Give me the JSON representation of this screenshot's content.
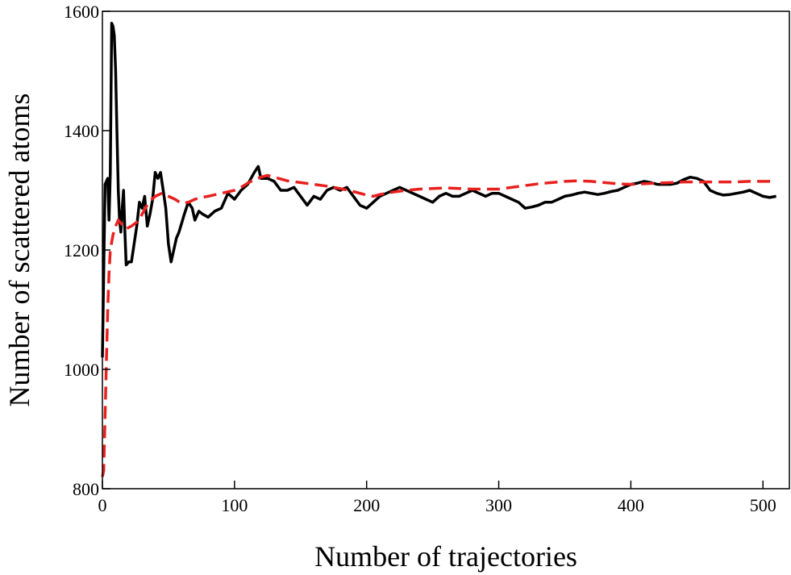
{
  "chart_data": {
    "type": "line",
    "title": "",
    "xlabel": "Number of trajectories",
    "ylabel": "Number of scattered atoms",
    "xlim": [
      0,
      520
    ],
    "ylim": [
      800,
      1600
    ],
    "xticks": [
      0,
      100,
      200,
      300,
      400,
      500
    ],
    "yticks": [
      800,
      1000,
      1200,
      1400,
      1600
    ],
    "grid": false,
    "legend": "none",
    "series": [
      {
        "style": "solid",
        "color": "#000000",
        "points": [
          [
            0,
            1020
          ],
          [
            2,
            1310
          ],
          [
            4,
            1320
          ],
          [
            5,
            1250
          ],
          [
            6,
            1330
          ],
          [
            7,
            1580
          ],
          [
            8,
            1575
          ],
          [
            9,
            1560
          ],
          [
            10,
            1500
          ],
          [
            11,
            1400
          ],
          [
            12,
            1300
          ],
          [
            13,
            1250
          ],
          [
            14,
            1230
          ],
          [
            15,
            1270
          ],
          [
            16,
            1300
          ],
          [
            17,
            1230
          ],
          [
            18,
            1175
          ],
          [
            20,
            1180
          ],
          [
            22,
            1180
          ],
          [
            24,
            1210
          ],
          [
            26,
            1240
          ],
          [
            28,
            1280
          ],
          [
            30,
            1270
          ],
          [
            32,
            1290
          ],
          [
            34,
            1240
          ],
          [
            36,
            1260
          ],
          [
            38,
            1285
          ],
          [
            40,
            1330
          ],
          [
            42,
            1320
          ],
          [
            44,
            1330
          ],
          [
            46,
            1300
          ],
          [
            48,
            1270
          ],
          [
            50,
            1210
          ],
          [
            52,
            1180
          ],
          [
            54,
            1200
          ],
          [
            56,
            1220
          ],
          [
            58,
            1230
          ],
          [
            60,
            1245
          ],
          [
            62,
            1260
          ],
          [
            65,
            1280
          ],
          [
            68,
            1270
          ],
          [
            70,
            1250
          ],
          [
            73,
            1265
          ],
          [
            76,
            1260
          ],
          [
            80,
            1255
          ],
          [
            85,
            1265
          ],
          [
            90,
            1270
          ],
          [
            95,
            1295
          ],
          [
            100,
            1285
          ],
          [
            105,
            1300
          ],
          [
            110,
            1310
          ],
          [
            115,
            1330
          ],
          [
            118,
            1340
          ],
          [
            120,
            1320
          ],
          [
            125,
            1320
          ],
          [
            130,
            1315
          ],
          [
            135,
            1300
          ],
          [
            140,
            1300
          ],
          [
            145,
            1305
          ],
          [
            150,
            1290
          ],
          [
            155,
            1275
          ],
          [
            160,
            1290
          ],
          [
            165,
            1285
          ],
          [
            170,
            1300
          ],
          [
            175,
            1305
          ],
          [
            180,
            1300
          ],
          [
            185,
            1305
          ],
          [
            190,
            1290
          ],
          [
            195,
            1275
          ],
          [
            200,
            1270
          ],
          [
            205,
            1280
          ],
          [
            210,
            1290
          ],
          [
            215,
            1295
          ],
          [
            220,
            1300
          ],
          [
            225,
            1305
          ],
          [
            230,
            1300
          ],
          [
            235,
            1295
          ],
          [
            240,
            1290
          ],
          [
            245,
            1285
          ],
          [
            250,
            1280
          ],
          [
            255,
            1290
          ],
          [
            260,
            1295
          ],
          [
            265,
            1290
          ],
          [
            270,
            1290
          ],
          [
            275,
            1295
          ],
          [
            280,
            1300
          ],
          [
            285,
            1295
          ],
          [
            290,
            1290
          ],
          [
            295,
            1295
          ],
          [
            300,
            1295
          ],
          [
            305,
            1290
          ],
          [
            310,
            1285
          ],
          [
            315,
            1280
          ],
          [
            320,
            1270
          ],
          [
            325,
            1272
          ],
          [
            330,
            1275
          ],
          [
            335,
            1280
          ],
          [
            340,
            1280
          ],
          [
            345,
            1285
          ],
          [
            350,
            1290
          ],
          [
            355,
            1292
          ],
          [
            360,
            1295
          ],
          [
            365,
            1297
          ],
          [
            370,
            1295
          ],
          [
            375,
            1293
          ],
          [
            380,
            1295
          ],
          [
            385,
            1298
          ],
          [
            390,
            1300
          ],
          [
            395,
            1305
          ],
          [
            400,
            1310
          ],
          [
            405,
            1312
          ],
          [
            410,
            1315
          ],
          [
            415,
            1313
          ],
          [
            420,
            1310
          ],
          [
            425,
            1310
          ],
          [
            430,
            1310
          ],
          [
            435,
            1312
          ],
          [
            440,
            1318
          ],
          [
            445,
            1322
          ],
          [
            450,
            1320
          ],
          [
            455,
            1315
          ],
          [
            460,
            1300
          ],
          [
            465,
            1295
          ],
          [
            470,
            1292
          ],
          [
            475,
            1293
          ],
          [
            480,
            1295
          ],
          [
            485,
            1297
          ],
          [
            490,
            1300
          ],
          [
            495,
            1295
          ],
          [
            500,
            1290
          ],
          [
            505,
            1288
          ],
          [
            510,
            1290
          ]
        ]
      },
      {
        "style": "dashed",
        "color": "#e8201e",
        "points": [
          [
            0,
            820
          ],
          [
            1,
            830
          ],
          [
            2,
            920
          ],
          [
            3,
            1010
          ],
          [
            4,
            1100
          ],
          [
            5,
            1160
          ],
          [
            6,
            1200
          ],
          [
            8,
            1225
          ],
          [
            10,
            1240
          ],
          [
            12,
            1250
          ],
          [
            14,
            1245
          ],
          [
            16,
            1240
          ],
          [
            18,
            1235
          ],
          [
            20,
            1238
          ],
          [
            22,
            1240
          ],
          [
            25,
            1245
          ],
          [
            28,
            1250
          ],
          [
            30,
            1260
          ],
          [
            35,
            1280
          ],
          [
            40,
            1290
          ],
          [
            45,
            1295
          ],
          [
            50,
            1290
          ],
          [
            55,
            1285
          ],
          [
            60,
            1278
          ],
          [
            65,
            1280
          ],
          [
            70,
            1285
          ],
          [
            75,
            1288
          ],
          [
            80,
            1290
          ],
          [
            90,
            1295
          ],
          [
            100,
            1300
          ],
          [
            105,
            1305
          ],
          [
            110,
            1312
          ],
          [
            115,
            1318
          ],
          [
            120,
            1322
          ],
          [
            125,
            1325
          ],
          [
            130,
            1322
          ],
          [
            140,
            1316
          ],
          [
            150,
            1313
          ],
          [
            160,
            1310
          ],
          [
            170,
            1307
          ],
          [
            180,
            1303
          ],
          [
            190,
            1298
          ],
          [
            200,
            1292
          ],
          [
            205,
            1290
          ],
          [
            210,
            1293
          ],
          [
            220,
            1297
          ],
          [
            230,
            1300
          ],
          [
            240,
            1302
          ],
          [
            250,
            1303
          ],
          [
            260,
            1304
          ],
          [
            270,
            1303
          ],
          [
            280,
            1302
          ],
          [
            290,
            1302
          ],
          [
            300,
            1302
          ],
          [
            310,
            1305
          ],
          [
            320,
            1308
          ],
          [
            330,
            1311
          ],
          [
            340,
            1313
          ],
          [
            350,
            1315
          ],
          [
            360,
            1316
          ],
          [
            370,
            1315
          ],
          [
            380,
            1313
          ],
          [
            390,
            1311
          ],
          [
            400,
            1310
          ],
          [
            410,
            1311
          ],
          [
            420,
            1312
          ],
          [
            430,
            1313
          ],
          [
            440,
            1314
          ],
          [
            450,
            1314
          ],
          [
            460,
            1314
          ],
          [
            470,
            1314
          ],
          [
            480,
            1314
          ],
          [
            490,
            1315
          ],
          [
            500,
            1315
          ],
          [
            510,
            1315
          ]
        ]
      }
    ]
  }
}
